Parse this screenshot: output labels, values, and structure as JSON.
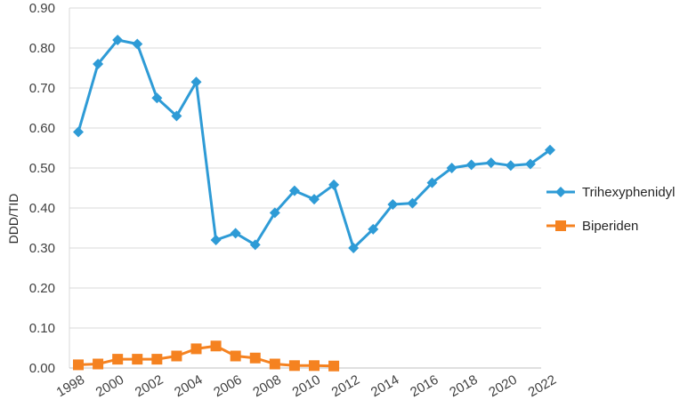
{
  "chart_data": {
    "type": "line",
    "title": "",
    "xlabel": "",
    "ylabel": "DDD/TID",
    "ylim": [
      0,
      0.9
    ],
    "y_ticks": [
      "0.00",
      "0.10",
      "0.20",
      "0.30",
      "0.40",
      "0.50",
      "0.60",
      "0.70",
      "0.80",
      "0.90"
    ],
    "x_ticks": [
      "1998",
      "2000",
      "2002",
      "2004",
      "2006",
      "2008",
      "2010",
      "2012",
      "2014",
      "2016",
      "2018",
      "2020",
      "2022"
    ],
    "x": [
      1998,
      1999,
      2000,
      2001,
      2002,
      2003,
      2004,
      2005,
      2006,
      2007,
      2008,
      2009,
      2010,
      2011,
      2012,
      2013,
      2014,
      2015,
      2016,
      2017,
      2018,
      2019,
      2020,
      2021,
      2022
    ],
    "grid": true,
    "legend_position": "right",
    "series": [
      {
        "name": "Trihexyphenidyl",
        "color": "#2E9BD6",
        "marker": "diamond",
        "values": [
          0.59,
          0.76,
          0.82,
          0.81,
          0.675,
          0.63,
          0.715,
          0.32,
          0.337,
          0.308,
          0.388,
          0.443,
          0.422,
          0.458,
          0.3,
          0.347,
          0.409,
          0.412,
          0.463,
          0.5,
          0.508,
          0.513,
          0.506,
          0.51,
          0.545
        ]
      },
      {
        "name": "Biperiden",
        "color": "#F58220",
        "marker": "square",
        "values": [
          0.008,
          0.01,
          0.022,
          0.022,
          0.022,
          0.03,
          0.048,
          0.055,
          0.03,
          0.025,
          0.01,
          0.006,
          0.006,
          0.005,
          null,
          null,
          null,
          null,
          null,
          null,
          null,
          null,
          null,
          null,
          null
        ]
      }
    ]
  }
}
